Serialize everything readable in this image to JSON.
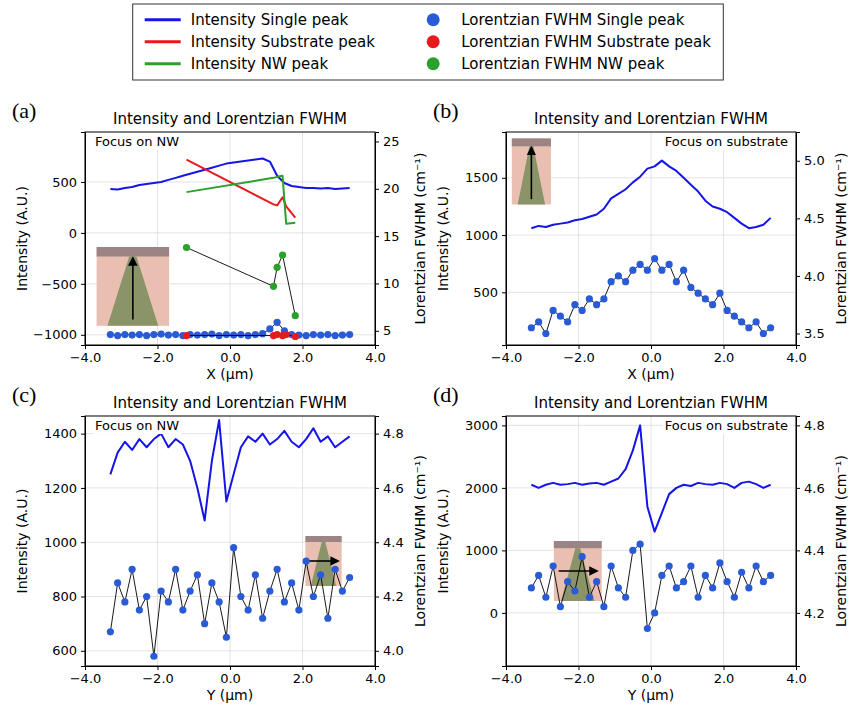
{
  "chart_data": [
    {
      "type": "line",
      "panel_label": "(a)",
      "title": "Intensity and Lorentzian FWHM",
      "annotations": [
        "Focus on NW"
      ],
      "x_label": "X (μm)",
      "y_label": "Intensity (A.U.)",
      "y2_label": "Lorentzian FWHM (cm⁻¹)",
      "legend": "top",
      "grid": true,
      "xlim": [
        -4,
        4
      ],
      "xticks": [
        {
          "value": -4,
          "label": "−4.0"
        },
        {
          "value": -2,
          "label": "−2.0"
        },
        {
          "value": 0,
          "label": "0.0"
        },
        {
          "value": 2,
          "label": "2.0"
        },
        {
          "value": 4,
          "label": "4.0"
        }
      ],
      "ylim": [
        -1100,
        990
      ],
      "yticks": [
        {
          "value": -1000,
          "label": "−1000"
        },
        {
          "value": -500,
          "label": "−500"
        },
        0,
        500
      ],
      "y2lim": [
        3.5,
        26
      ],
      "y2ticks": [
        5,
        10,
        15,
        20,
        25
      ],
      "x": [
        -3.3,
        -3.1,
        -2.9,
        -2.7,
        -2.5,
        -2.3,
        -2.1,
        -1.9,
        -1.7,
        -1.5,
        -1.3,
        -1.1,
        -0.9,
        -0.7,
        -0.5,
        -0.3,
        -0.1,
        0.1,
        0.3,
        0.5,
        0.7,
        0.9,
        1.1,
        1.3,
        1.5,
        1.7,
        1.9,
        2.1,
        2.3,
        2.5,
        2.7,
        2.9,
        3.1,
        3.3
      ],
      "series": [
        {
          "name": "Intensity Single peak",
          "type": "line",
          "color": "#1515e8",
          "line_style": "solid",
          "values": [
            430,
            425,
            440,
            450,
            470,
            480,
            490,
            500,
            520,
            540,
            560,
            580,
            600,
            620,
            640,
            660,
            680,
            690,
            700,
            710,
            720,
            730,
            700,
            560,
            490,
            460,
            450,
            440,
            440,
            435,
            440,
            430,
            435,
            440
          ]
        },
        {
          "name": "Intensity Substrate peak",
          "type": "line",
          "color": "#e8191d",
          "line_style": "solid",
          "x": [
            -1.2,
            1.2,
            1.3,
            1.45,
            1.55,
            1.8
          ],
          "values": [
            720,
            280,
            270,
            350,
            260,
            150
          ]
        },
        {
          "name": "Intensity NW peak",
          "type": "line",
          "color": "#2ca02c",
          "line_style": "solid",
          "x": [
            -1.2,
            1.2,
            1.3,
            1.45,
            1.55,
            1.8
          ],
          "values": [
            400,
            540,
            550,
            560,
            90,
            100
          ]
        },
        {
          "name": "Lorentzian FWHM Single peak",
          "type": "scatter",
          "color": "#2a5bd7",
          "marker": "circle",
          "line_style": "solid",
          "axis": "y2",
          "values": [
            4.6,
            4.5,
            4.6,
            4.55,
            4.6,
            4.5,
            4.6,
            4.65,
            4.55,
            4.6,
            4.5,
            4.6,
            4.55,
            4.6,
            4.65,
            4.5,
            4.6,
            4.55,
            4.6,
            4.5,
            4.6,
            4.7,
            5.2,
            5.9,
            5.0,
            4.6,
            4.55,
            4.5,
            4.6,
            4.55,
            4.6,
            4.5,
            4.55,
            4.6
          ]
        },
        {
          "name": "Lorentzian FWHM Substrate peak",
          "type": "scatter",
          "color": "#e8191d",
          "marker": "circle",
          "line_style": "solid",
          "axis": "y2",
          "x": [
            -1.2,
            1.2,
            1.3,
            1.45,
            1.55,
            1.8
          ],
          "values": [
            4.5,
            4.5,
            4.6,
            4.5,
            4.6,
            4.4
          ]
        },
        {
          "name": "Lorentzian FWHM NW peak",
          "type": "scatter",
          "color": "#2ca02c",
          "marker": "circle",
          "line_style": "solid",
          "axis": "y2",
          "x": [
            -1.2,
            1.2,
            1.3,
            1.45,
            1.8
          ],
          "values": [
            13.8,
            9.7,
            11.7,
            13.0,
            6.6
          ]
        }
      ]
    },
    {
      "type": "line",
      "panel_label": "(b)",
      "title": "Intensity and Lorentzian FWHM",
      "annotations": [
        "Focus on substrate"
      ],
      "x_label": "X (μm)",
      "y_label": "Intensity (A.U.)",
      "y2_label": "Lorentzian FWHM (cm⁻¹)",
      "grid": true,
      "xlim": [
        -4,
        4
      ],
      "xticks": [
        {
          "value": -4,
          "label": "−4.0"
        },
        {
          "value": -2,
          "label": "−2.0"
        },
        {
          "value": 0,
          "label": "0.0"
        },
        {
          "value": 2,
          "label": "2.0"
        },
        {
          "value": 4,
          "label": "4.0"
        }
      ],
      "ylim": [
        40,
        1900
      ],
      "yticks": [
        500,
        1000,
        1500
      ],
      "y2lim": [
        3.4,
        5.25
      ],
      "y2ticks": [
        3.5,
        {
          "value": 4,
          "label": "4.0"
        },
        4.5,
        {
          "value": 5,
          "label": "5.0"
        }
      ],
      "x": [
        -3.3,
        -3.1,
        -2.9,
        -2.7,
        -2.5,
        -2.3,
        -2.1,
        -1.9,
        -1.7,
        -1.5,
        -1.3,
        -1.1,
        -0.9,
        -0.7,
        -0.5,
        -0.3,
        -0.1,
        0.1,
        0.3,
        0.5,
        0.7,
        0.9,
        1.1,
        1.3,
        1.5,
        1.7,
        1.9,
        2.1,
        2.3,
        2.5,
        2.7,
        2.9,
        3.1,
        3.3
      ],
      "series": [
        {
          "type": "line",
          "color": "#1515e8",
          "line_style": "solid",
          "values": [
            1060,
            1080,
            1070,
            1090,
            1100,
            1110,
            1130,
            1140,
            1160,
            1180,
            1230,
            1320,
            1360,
            1400,
            1460,
            1510,
            1580,
            1600,
            1650,
            1600,
            1560,
            1500,
            1440,
            1380,
            1300,
            1250,
            1230,
            1200,
            1150,
            1100,
            1060,
            1070,
            1090,
            1150
          ]
        },
        {
          "type": "scatter",
          "color": "#2a5bd7",
          "marker": "circle",
          "line_style": "solid",
          "axis": "y2",
          "values": [
            3.55,
            3.6,
            3.5,
            3.7,
            3.65,
            3.6,
            3.75,
            3.7,
            3.8,
            3.75,
            3.8,
            3.95,
            4.0,
            3.95,
            4.05,
            4.1,
            4.05,
            4.15,
            4.05,
            4.1,
            3.95,
            4.05,
            3.9,
            3.85,
            3.8,
            3.75,
            3.85,
            3.7,
            3.65,
            3.6,
            3.55,
            3.6,
            3.5,
            3.55
          ]
        }
      ]
    },
    {
      "type": "line",
      "panel_label": "(c)",
      "title": "Intensity and Lorentzian FWHM",
      "annotations": [
        "Focus on NW"
      ],
      "x_label": "Y (μm)",
      "y_label": "Intensity (A.U.)",
      "y2_label": "Lorentzian FWHM (cm⁻¹)",
      "grid": true,
      "xlim": [
        -4,
        4
      ],
      "xticks": [
        {
          "value": -4,
          "label": "−4.0"
        },
        {
          "value": -2,
          "label": "−2.0"
        },
        {
          "value": 0,
          "label": "0.0"
        },
        {
          "value": 2,
          "label": "2.0"
        },
        {
          "value": 4,
          "label": "4.0"
        }
      ],
      "ylim": [
        544,
        1465
      ],
      "yticks": [
        600,
        800,
        1000,
        1200,
        1400
      ],
      "y2lim": [
        3.944,
        4.865
      ],
      "y2ticks": [
        {
          "value": 4,
          "label": "4.0"
        },
        4.2,
        4.4,
        4.6,
        4.8
      ],
      "x": [
        -3.3,
        -3.1,
        -2.9,
        -2.7,
        -2.5,
        -2.3,
        -2.1,
        -1.9,
        -1.7,
        -1.5,
        -1.3,
        -1.1,
        -0.9,
        -0.7,
        -0.5,
        -0.3,
        -0.1,
        0.1,
        0.3,
        0.5,
        0.7,
        0.9,
        1.1,
        1.3,
        1.5,
        1.7,
        1.9,
        2.1,
        2.3,
        2.5,
        2.7,
        2.9,
        3.1,
        3.3
      ],
      "series": [
        {
          "type": "line",
          "color": "#1515e8",
          "line_style": "solid",
          "values": [
            1250,
            1330,
            1370,
            1340,
            1380,
            1350,
            1380,
            1400,
            1350,
            1380,
            1360,
            1300,
            1200,
            1080,
            1300,
            1450,
            1150,
            1250,
            1350,
            1390,
            1370,
            1400,
            1360,
            1380,
            1410,
            1370,
            1350,
            1380,
            1420,
            1370,
            1390,
            1350,
            1370,
            1390
          ]
        },
        {
          "type": "scatter",
          "color": "#2a5bd7",
          "marker": "circle",
          "line_style": "solid",
          "axis": "y2",
          "values": [
            4.07,
            4.25,
            4.18,
            4.3,
            4.15,
            4.2,
            3.98,
            4.22,
            4.18,
            4.3,
            4.15,
            4.22,
            4.28,
            4.1,
            4.25,
            4.18,
            4.05,
            4.38,
            4.2,
            4.15,
            4.28,
            4.12,
            4.22,
            4.3,
            4.18,
            4.25,
            4.15,
            4.33,
            4.2,
            4.28,
            4.12,
            4.3,
            4.22,
            4.27
          ]
        }
      ]
    },
    {
      "type": "line",
      "panel_label": "(d)",
      "title": "Intensity and Lorentzian FWHM",
      "annotations": [
        "Focus on substrate"
      ],
      "x_label": "Y (μm)",
      "y_label": "Intensity (A.U.)",
      "y2_label": "Lorentzian FWHM (cm⁻¹)",
      "grid": true,
      "xlim": [
        -4,
        4
      ],
      "xticks": [
        {
          "value": -4,
          "label": "−4.0"
        },
        {
          "value": -2,
          "label": "−2.0"
        },
        {
          "value": 0,
          "label": "0.0"
        },
        {
          "value": 2,
          "label": "2.0"
        },
        {
          "value": 4,
          "label": "4.0"
        }
      ],
      "ylim": [
        -850,
        3150
      ],
      "yticks": [
        0,
        1000,
        2000,
        3000
      ],
      "y2lim": [
        4.03,
        4.83
      ],
      "y2ticks": [
        4.2,
        4.4,
        4.6,
        4.8
      ],
      "x": [
        -3.3,
        -3.1,
        -2.9,
        -2.7,
        -2.5,
        -2.3,
        -2.1,
        -1.9,
        -1.7,
        -1.5,
        -1.3,
        -1.1,
        -0.9,
        -0.7,
        -0.5,
        -0.3,
        -0.1,
        0.1,
        0.3,
        0.5,
        0.7,
        0.9,
        1.1,
        1.3,
        1.5,
        1.7,
        1.9,
        2.1,
        2.3,
        2.5,
        2.7,
        2.9,
        3.1,
        3.3
      ],
      "series": [
        {
          "type": "line",
          "color": "#1515e8",
          "line_style": "solid",
          "values": [
            2050,
            2000,
            2050,
            2080,
            2050,
            2060,
            2080,
            2050,
            2070,
            2080,
            2050,
            2100,
            2150,
            2300,
            2600,
            3000,
            1700,
            1300,
            1600,
            1900,
            2000,
            2050,
            2030,
            2080,
            2060,
            2050,
            2080,
            2060,
            2000,
            2080,
            2100,
            2060,
            2000,
            2050
          ]
        },
        {
          "type": "scatter",
          "color": "#2a5bd7",
          "marker": "circle",
          "line_style": "solid",
          "axis": "y2",
          "values": [
            4.28,
            4.32,
            4.25,
            4.35,
            4.22,
            4.3,
            4.27,
            4.38,
            4.25,
            4.3,
            4.22,
            4.35,
            4.28,
            4.25,
            4.4,
            4.42,
            4.15,
            4.2,
            4.32,
            4.35,
            4.28,
            4.3,
            4.35,
            4.25,
            4.32,
            4.28,
            4.36,
            4.3,
            4.25,
            4.33,
            4.28,
            4.35,
            4.3,
            4.32
          ]
        }
      ]
    }
  ]
}
